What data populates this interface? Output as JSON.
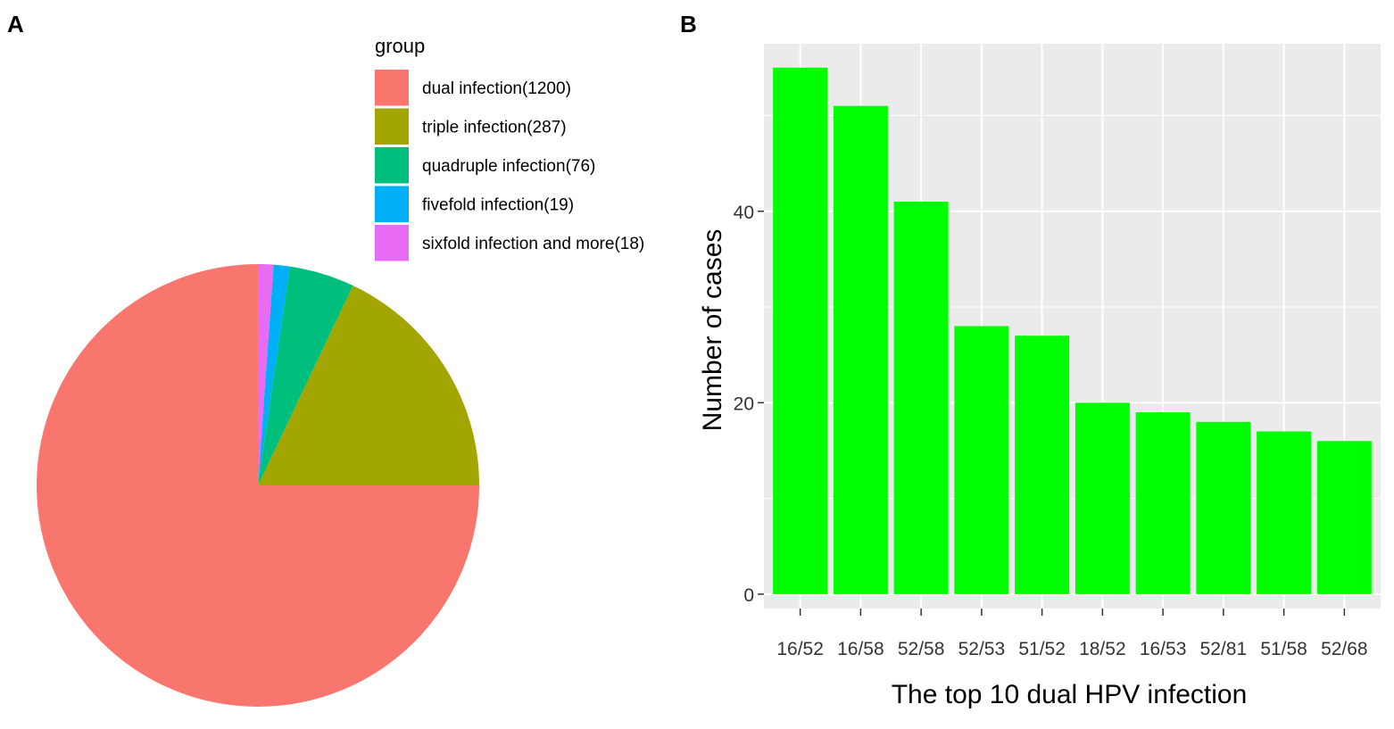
{
  "panels": {
    "a": {
      "label": "A"
    },
    "b": {
      "label": "B"
    }
  },
  "chart_data": [
    {
      "type": "pie",
      "panel": "A",
      "legend_title": "group",
      "legend_position": "top-right",
      "slices": [
        {
          "label": "dual infection(1200)",
          "value": 1200,
          "color": "#F8766D"
        },
        {
          "label": "triple infection(287)",
          "value": 287,
          "color": "#A3A500"
        },
        {
          "label": "quadruple infection(76)",
          "value": 76,
          "color": "#00BF7D"
        },
        {
          "label": "fivefold infection(19)",
          "value": 19,
          "color": "#00B0F6"
        },
        {
          "label": "sixfold infection and more(18)",
          "value": 18,
          "color": "#E76BF3"
        }
      ]
    },
    {
      "type": "bar",
      "panel": "B",
      "title": "",
      "xlabel": "The top 10 dual HPV infection",
      "ylabel": "Number of cases",
      "categories": [
        "16/52",
        "16/58",
        "52/58",
        "52/53",
        "51/52",
        "18/52",
        "16/53",
        "52/81",
        "51/58",
        "52/68"
      ],
      "values": [
        55,
        51,
        41,
        28,
        27,
        20,
        19,
        18,
        17,
        16
      ],
      "ylim": [
        -1.5,
        57.5
      ],
      "yticks": [
        0,
        20,
        40
      ],
      "ytick_labels": [
        "0",
        "20",
        "40"
      ],
      "bar_color": "#00FF00",
      "panel_background": "#EBEBEB",
      "grid": true
    }
  ]
}
